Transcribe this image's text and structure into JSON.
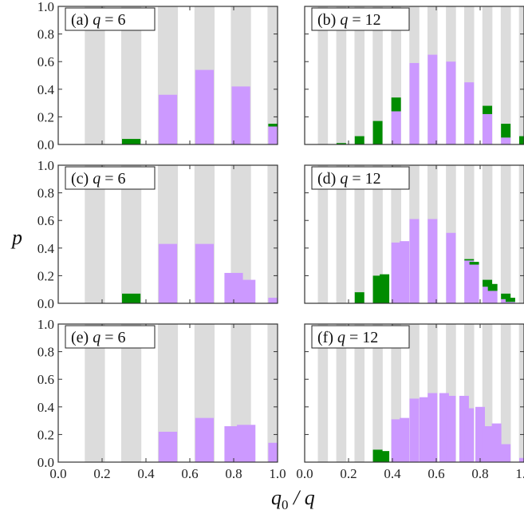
{
  "figure": {
    "ylabel": "p",
    "xlabel_main": "q",
    "xlabel_sub": "0",
    "xlabel_rest": " / q",
    "y_ticks": [
      "0.0",
      "0.2",
      "0.4",
      "0.6",
      "0.8",
      "1.0"
    ],
    "x_ticks": [
      "0.0",
      "0.2",
      "0.4",
      "0.6",
      "0.8",
      "1.0"
    ]
  },
  "colors": {
    "grey_band": "#dcdcdc",
    "purple": "#cc99ff",
    "green": "#008c00"
  },
  "chart_data": [
    {
      "id": "a",
      "type": "bar",
      "label_prefix": "(a)",
      "q_text": "q = 6",
      "xlim": [
        0,
        1
      ],
      "ylim": [
        0,
        1
      ],
      "bands": [
        0.167,
        0.333,
        0.5,
        0.667,
        0.833,
        1.0
      ],
      "bars": [
        {
          "x": 0.333,
          "purple": 0.0,
          "green": 0.04
        },
        {
          "x": 0.5,
          "purple": 0.36,
          "green": 0.0
        },
        {
          "x": 0.667,
          "purple": 0.54,
          "green": 0.0
        },
        {
          "x": 0.833,
          "purple": 0.42,
          "green": 0.0
        },
        {
          "x": 1.0,
          "purple": 0.13,
          "green": 0.02
        }
      ]
    },
    {
      "id": "b",
      "type": "bar",
      "label_prefix": "(b)",
      "q_text": "q = 12",
      "xlim": [
        0,
        1
      ],
      "ylim": [
        0,
        1
      ],
      "bands": [
        0.083,
        0.167,
        0.25,
        0.333,
        0.417,
        0.5,
        0.583,
        0.667,
        0.75,
        0.833,
        0.917,
        1.0
      ],
      "bars": [
        {
          "x": 0.167,
          "purple": 0.0,
          "green": 0.01
        },
        {
          "x": 0.25,
          "purple": 0.0,
          "green": 0.06
        },
        {
          "x": 0.333,
          "purple": 0.0,
          "green": 0.17
        },
        {
          "x": 0.417,
          "purple": 0.24,
          "green": 0.1
        },
        {
          "x": 0.5,
          "purple": 0.59,
          "green": 0.0
        },
        {
          "x": 0.583,
          "purple": 0.65,
          "green": 0.0
        },
        {
          "x": 0.667,
          "purple": 0.6,
          "green": 0.0
        },
        {
          "x": 0.75,
          "purple": 0.45,
          "green": 0.0
        },
        {
          "x": 0.833,
          "purple": 0.22,
          "green": 0.06
        },
        {
          "x": 0.917,
          "purple": 0.05,
          "green": 0.1
        },
        {
          "x": 1.0,
          "purple": 0.0,
          "green": 0.06
        }
      ]
    },
    {
      "id": "c",
      "type": "bar",
      "label_prefix": "(c)",
      "q_text": "q = 6",
      "xlim": [
        0,
        1
      ],
      "ylim": [
        0,
        1
      ],
      "bands": [
        0.167,
        0.333,
        0.5,
        0.667,
        0.833,
        1.0
      ],
      "bars": [
        {
          "x": 0.333,
          "purple": 0.0,
          "green": 0.07
        },
        {
          "x": 0.5,
          "purple": 0.43,
          "green": 0.0
        },
        {
          "x": 0.667,
          "purple": 0.43,
          "green": 0.0
        },
        {
          "x": 0.8,
          "purple": 0.22,
          "green": 0.0
        },
        {
          "x": 0.857,
          "purple": 0.17,
          "green": 0.0
        },
        {
          "x": 1.0,
          "purple": 0.04,
          "green": 0.0
        }
      ]
    },
    {
      "id": "d",
      "type": "bar",
      "label_prefix": "(d)",
      "q_text": "q = 12",
      "xlim": [
        0,
        1
      ],
      "ylim": [
        0,
        1
      ],
      "bands": [
        0.083,
        0.167,
        0.25,
        0.333,
        0.417,
        0.5,
        0.583,
        0.667,
        0.75,
        0.833,
        0.917,
        1.0
      ],
      "bars": [
        {
          "x": 0.25,
          "purple": 0.0,
          "green": 0.08
        },
        {
          "x": 0.333,
          "purple": 0.0,
          "green": 0.2
        },
        {
          "x": 0.364,
          "purple": 0.0,
          "green": 0.21
        },
        {
          "x": 0.417,
          "purple": 0.44,
          "green": 0.0
        },
        {
          "x": 0.455,
          "purple": 0.45,
          "green": 0.0
        },
        {
          "x": 0.5,
          "purple": 0.61,
          "green": 0.0
        },
        {
          "x": 0.583,
          "purple": 0.61,
          "green": 0.0
        },
        {
          "x": 0.667,
          "purple": 0.51,
          "green": 0.0
        },
        {
          "x": 0.75,
          "purple": 0.31,
          "green": 0.01
        },
        {
          "x": 0.773,
          "purple": 0.28,
          "green": 0.02
        },
        {
          "x": 0.833,
          "purple": 0.12,
          "green": 0.05
        },
        {
          "x": 0.857,
          "purple": 0.09,
          "green": 0.05
        },
        {
          "x": 0.917,
          "purple": 0.03,
          "green": 0.04
        },
        {
          "x": 0.938,
          "purple": 0.01,
          "green": 0.03
        }
      ]
    },
    {
      "id": "e",
      "type": "bar",
      "label_prefix": "(e)",
      "q_text": "q = 6",
      "xlim": [
        0,
        1
      ],
      "ylim": [
        0,
        1
      ],
      "bands": [
        0.167,
        0.333,
        0.5,
        0.667,
        0.833,
        1.0
      ],
      "bars": [
        {
          "x": 0.5,
          "purple": 0.22,
          "green": 0.0
        },
        {
          "x": 0.667,
          "purple": 0.32,
          "green": 0.0
        },
        {
          "x": 0.8,
          "purple": 0.26,
          "green": 0.0
        },
        {
          "x": 0.857,
          "purple": 0.27,
          "green": 0.0
        },
        {
          "x": 1.0,
          "purple": 0.14,
          "green": 0.0
        },
        {
          "x": 1.05,
          "purple": 0.13,
          "green": 0.0
        }
      ]
    },
    {
      "id": "f",
      "type": "bar",
      "label_prefix": "(f)",
      "q_text": "q = 12",
      "xlim": [
        0,
        1
      ],
      "ylim": [
        0,
        1
      ],
      "bands": [
        0.083,
        0.167,
        0.25,
        0.333,
        0.417,
        0.5,
        0.583,
        0.667,
        0.75,
        0.833,
        0.917,
        1.0
      ],
      "bars": [
        {
          "x": 0.333,
          "purple": 0.0,
          "green": 0.09
        },
        {
          "x": 0.364,
          "purple": 0.0,
          "green": 0.08
        },
        {
          "x": 0.417,
          "purple": 0.31,
          "green": 0.0
        },
        {
          "x": 0.455,
          "purple": 0.32,
          "green": 0.0
        },
        {
          "x": 0.5,
          "purple": 0.46,
          "green": 0.0
        },
        {
          "x": 0.545,
          "purple": 0.47,
          "green": 0.0
        },
        {
          "x": 0.583,
          "purple": 0.5,
          "green": 0.0
        },
        {
          "x": 0.636,
          "purple": 0.5,
          "green": 0.0
        },
        {
          "x": 0.667,
          "purple": 0.48,
          "green": 0.0
        },
        {
          "x": 0.727,
          "purple": 0.48,
          "green": 0.0
        },
        {
          "x": 0.75,
          "purple": 0.39,
          "green": 0.0
        },
        {
          "x": 0.8,
          "purple": 0.4,
          "green": 0.0
        },
        {
          "x": 0.833,
          "purple": 0.26,
          "green": 0.0
        },
        {
          "x": 0.875,
          "purple": 0.28,
          "green": 0.0
        },
        {
          "x": 0.917,
          "purple": 0.13,
          "green": 0.0
        },
        {
          "x": 1.0,
          "purple": 0.03,
          "green": 0.0
        },
        {
          "x": 1.05,
          "purple": 0.02,
          "green": 0.0
        }
      ]
    }
  ]
}
